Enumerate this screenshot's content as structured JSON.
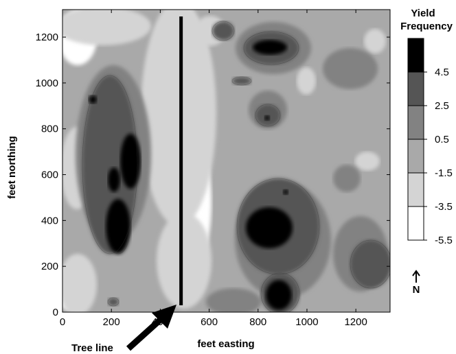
{
  "chart_data": {
    "type": "heatmap",
    "xlabel": "feet easting",
    "ylabel": "feet northing",
    "xlim": [
      0,
      1340
    ],
    "ylim": [
      0,
      1320
    ],
    "x_ticks": [
      0,
      200,
      400,
      600,
      800,
      1000,
      1200
    ],
    "y_ticks": [
      0,
      200,
      400,
      600,
      800,
      1000,
      1200
    ],
    "legend": {
      "title_line1": "Yield",
      "title_line2": "Frequency",
      "labels": [
        "4.5",
        "2.5",
        "0.5",
        "-1.5",
        "-3.5",
        "-5.5"
      ],
      "placement": "right"
    },
    "levels": [
      {
        "min": -5.5,
        "max": -3.5,
        "color": "#ffffff"
      },
      {
        "min": -3.5,
        "max": -1.5,
        "color": "#d4d4d4"
      },
      {
        "min": -1.5,
        "max": 0.5,
        "color": "#a9a9a9"
      },
      {
        "min": 0.5,
        "max": 2.5,
        "color": "#828282"
      },
      {
        "min": 2.5,
        "max": 4.5,
        "color": "#555555"
      },
      {
        "min": 4.5,
        "max": 6.5,
        "color": "#000000"
      }
    ],
    "tree_line": {
      "x": 485,
      "y_from": 30,
      "y_to": 1290
    },
    "annotation": "Tree line",
    "north_label": "N",
    "grid": false
  }
}
